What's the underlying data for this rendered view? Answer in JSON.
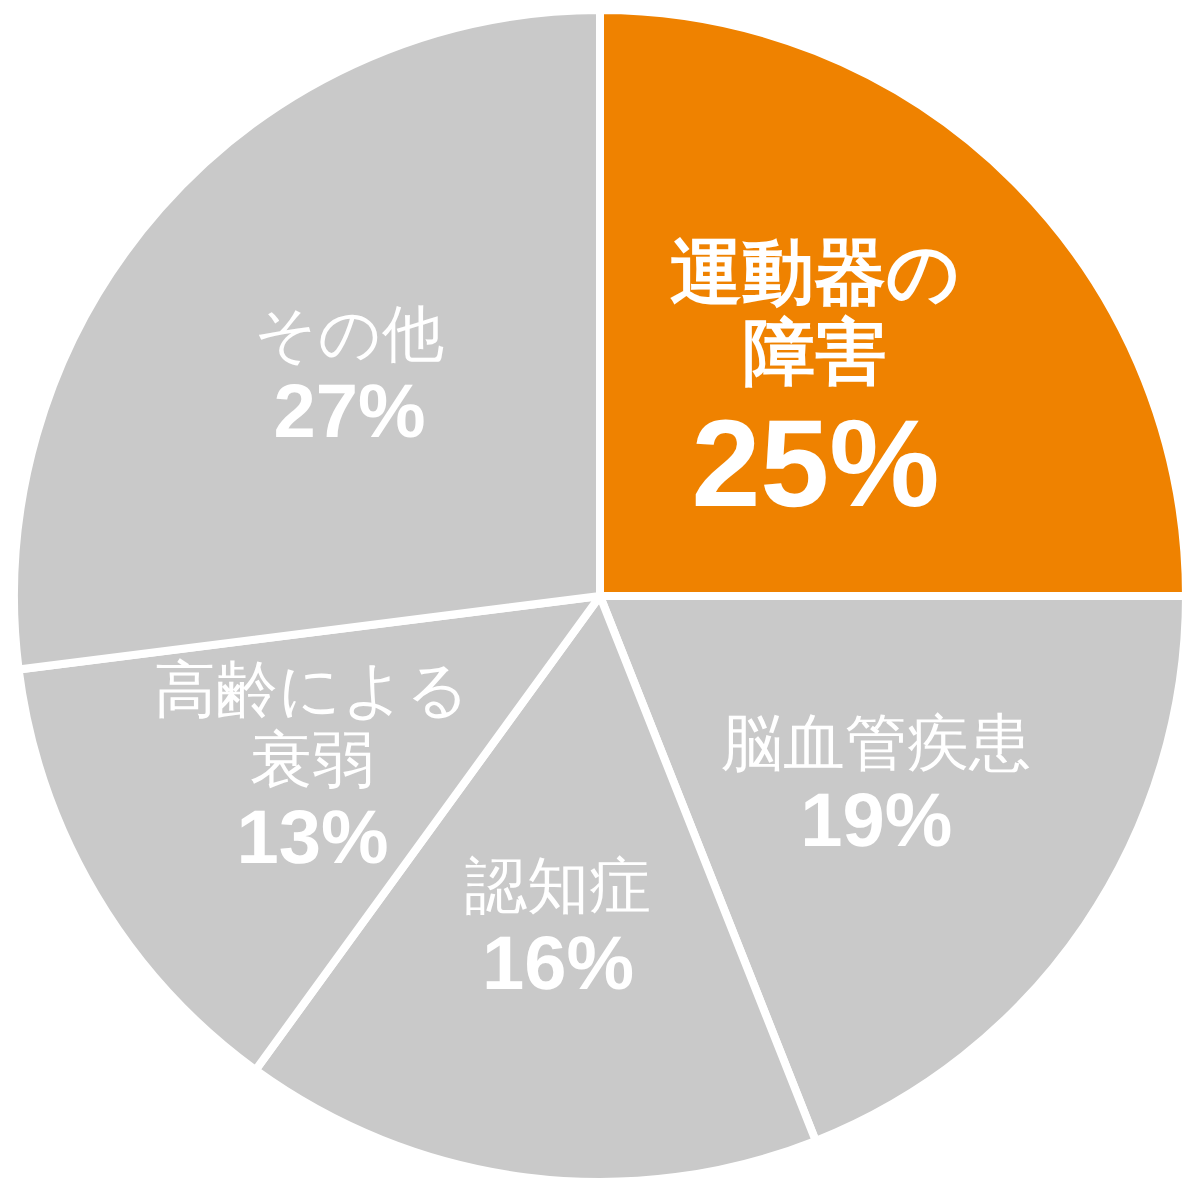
{
  "chart_data": {
    "type": "pie",
    "categories": [
      "運動器の障害",
      "脳血管疾患",
      "認知症",
      "高齢による衰弱",
      "その他"
    ],
    "values": [
      25,
      19,
      16,
      13,
      27
    ],
    "value_labels": [
      "25%",
      "19%",
      "16%",
      "13%",
      "27%"
    ],
    "colors": [
      "#ef8200",
      "#c9c9c9",
      "#c9c9c9",
      "#c9c9c9",
      "#c9c9c9"
    ]
  }
}
